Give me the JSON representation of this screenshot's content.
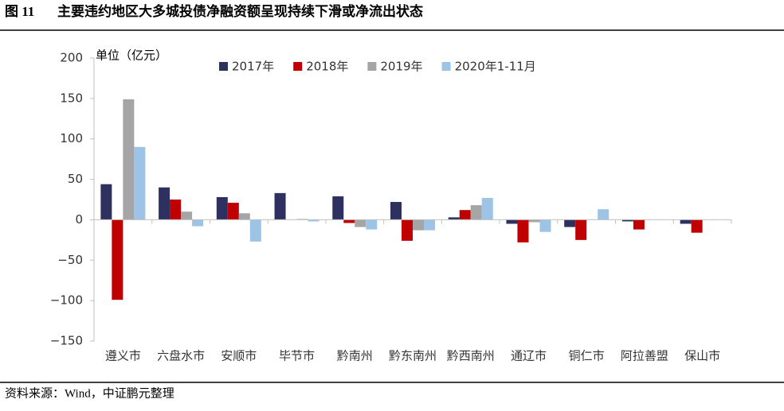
{
  "chart_data": {
    "type": "bar",
    "figure_label": "图 11",
    "title": "主要违约地区大多城投债净融资额呈现持续下滑或净流出状态",
    "y_label": "单位（亿元）",
    "source": "资料来源：Wind，中证鹏元整理",
    "categories": [
      "遵义市",
      "六盘水市",
      "安顺市",
      "毕节市",
      "黔南州",
      "黔东南州",
      "黔西南州",
      "通辽市",
      "铜仁市",
      "阿拉善盟",
      "保山市"
    ],
    "series": [
      {
        "name": "2017年",
        "color": "#2e3160",
        "values": [
          44,
          40,
          28,
          33,
          29,
          22,
          3,
          -5,
          -9,
          -2,
          -5
        ]
      },
      {
        "name": "2018年",
        "color": "#c00000",
        "values": [
          -99,
          25,
          21,
          0,
          -4,
          -26,
          12,
          -28,
          -25,
          -12,
          -16
        ]
      },
      {
        "name": "2019年",
        "color": "#a5a5a5",
        "values": [
          149,
          10,
          8,
          1,
          -9,
          -13,
          18,
          -3,
          0,
          0,
          0
        ]
      },
      {
        "name": "2020年1-11月",
        "color": "#9dc3e6",
        "values": [
          90,
          -8,
          -27,
          -2,
          -12,
          -13,
          27,
          -15,
          13,
          0,
          0
        ]
      }
    ],
    "ylim": [
      -150,
      200
    ],
    "yticks": [
      {
        "value": -150,
        "label": "−150"
      },
      {
        "value": -100,
        "label": "−100"
      },
      {
        "value": -50,
        "label": "−50"
      },
      0,
      50,
      100,
      150,
      200
    ],
    "grid": false
  }
}
